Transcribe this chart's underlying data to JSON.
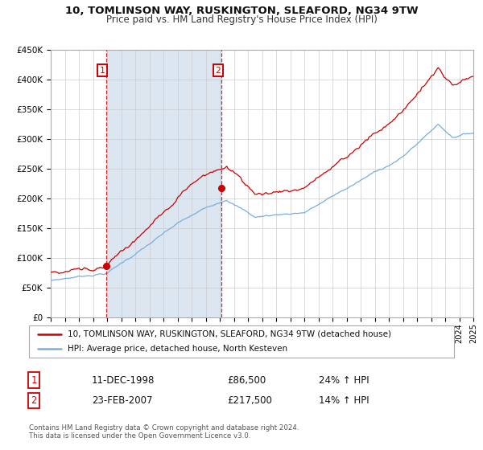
{
  "title": "10, TOMLINSON WAY, RUSKINGTON, SLEAFORD, NG34 9TW",
  "subtitle": "Price paid vs. HM Land Registry's House Price Index (HPI)",
  "legend_entry1": "10, TOMLINSON WAY, RUSKINGTON, SLEAFORD, NG34 9TW (detached house)",
  "legend_entry2": "HPI: Average price, detached house, North Kesteven",
  "annotation1_date": "11-DEC-1998",
  "annotation1_price": "£86,500",
  "annotation1_hpi": "24% ↑ HPI",
  "annotation2_date": "23-FEB-2007",
  "annotation2_price": "£217,500",
  "annotation2_hpi": "14% ↑ HPI",
  "footer": "Contains HM Land Registry data © Crown copyright and database right 2024.\nThis data is licensed under the Open Government Licence v3.0.",
  "sale1_year": 1998.92,
  "sale1_value": 86500,
  "sale2_year": 2007.12,
  "sale2_value": 217500,
  "hpi_color": "#7aaddc",
  "price_color": "#cc0000",
  "bg_color": "#ffffff",
  "shaded_region_color": "#dce6f1",
  "vline_color": "#cc0000",
  "grid_color": "#cccccc",
  "annotation_box_color": "#cc0000",
  "ylim_max": 450000,
  "ylim_min": 0
}
